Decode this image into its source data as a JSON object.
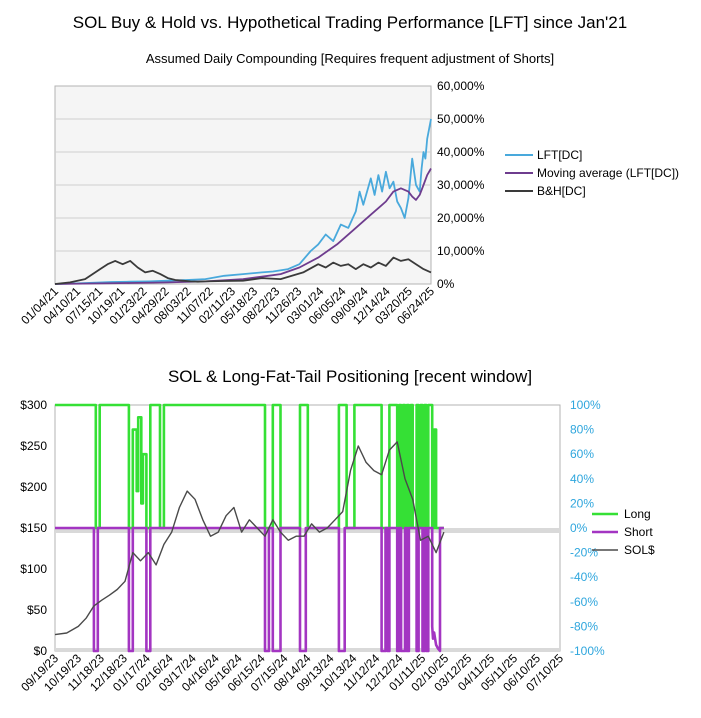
{
  "chart_data": [
    {
      "type": "line",
      "title": "SOL Buy & Hold vs. Hypothetical Trading Performance [LFT] since Jan'21",
      "subtitle": "Assumed Daily Compounding [Requires frequent adjustment of Shorts]",
      "x_tick_labels": [
        "01/04/21",
        "04/10/21",
        "07/15/21",
        "10/19/21",
        "01/23/22",
        "04/29/22",
        "08/03/22",
        "11/07/22",
        "02/11/23",
        "05/18/23",
        "08/22/23",
        "11/26/23",
        "03/01/24",
        "06/05/24",
        "09/09/24",
        "12/14/24",
        "03/20/25",
        "06/24/25"
      ],
      "y_tick_labels": [
        "0%",
        "10,000%",
        "20,000%",
        "30,000%",
        "40,000%",
        "50,000%",
        "60,000%"
      ],
      "ylim": [
        0,
        60000
      ],
      "grid": true,
      "legend_position": "right",
      "series": [
        {
          "name": "LFT[DC]",
          "color": "#49a9dc",
          "t": [
            0,
            0.05,
            0.1,
            0.15,
            0.2,
            0.25,
            0.3,
            0.35,
            0.4,
            0.45,
            0.5,
            0.55,
            0.58,
            0.62,
            0.65,
            0.68,
            0.7,
            0.72,
            0.74,
            0.76,
            0.78,
            0.8,
            0.81,
            0.82,
            0.84,
            0.85,
            0.86,
            0.87,
            0.88,
            0.89,
            0.9,
            0.91,
            0.92,
            0.93,
            0.94,
            0.95,
            0.96,
            0.97,
            0.975,
            0.98,
            0.985,
            0.99,
            0.995,
            1.0
          ],
          "values": [
            0,
            150,
            350,
            600,
            700,
            800,
            1000,
            1200,
            1500,
            2500,
            3000,
            3500,
            3800,
            4500,
            6000,
            10000,
            12000,
            15000,
            13000,
            18000,
            17000,
            22000,
            28000,
            24000,
            32000,
            27000,
            33000,
            28000,
            34000,
            29000,
            31000,
            25000,
            23000,
            20000,
            26000,
            38000,
            30000,
            28000,
            35000,
            40000,
            38000,
            44000,
            47000,
            50000
          ]
        },
        {
          "name": "Moving average (LFT[DC])",
          "color": "#6e3c8e",
          "t": [
            0,
            0.1,
            0.2,
            0.3,
            0.4,
            0.5,
            0.55,
            0.6,
            0.65,
            0.7,
            0.75,
            0.8,
            0.84,
            0.88,
            0.9,
            0.92,
            0.94,
            0.95,
            0.96,
            0.97,
            0.98,
            0.99,
            1.0
          ],
          "values": [
            0,
            150,
            300,
            500,
            800,
            1500,
            2200,
            3000,
            5000,
            8000,
            12000,
            17000,
            21000,
            25000,
            28000,
            29000,
            28000,
            26500,
            25500,
            27000,
            30000,
            33000,
            35000
          ]
        },
        {
          "name": "B&H[DC]",
          "color": "#3a3a3a",
          "t": [
            0,
            0.04,
            0.08,
            0.1,
            0.12,
            0.14,
            0.16,
            0.17,
            0.18,
            0.2,
            0.22,
            0.24,
            0.26,
            0.28,
            0.3,
            0.32,
            0.34,
            0.36,
            0.38,
            0.4,
            0.45,
            0.5,
            0.55,
            0.6,
            0.63,
            0.66,
            0.7,
            0.72,
            0.74,
            0.76,
            0.78,
            0.8,
            0.82,
            0.84,
            0.86,
            0.88,
            0.9,
            0.92,
            0.94,
            0.96,
            0.98,
            1.0
          ],
          "values": [
            0,
            500,
            1500,
            3000,
            4500,
            6000,
            7000,
            6500,
            6000,
            7000,
            5000,
            3500,
            4000,
            3000,
            1800,
            1200,
            1000,
            800,
            700,
            800,
            900,
            1000,
            1800,
            1500,
            2500,
            3500,
            6000,
            5000,
            6500,
            5500,
            6000,
            4500,
            6000,
            5000,
            6500,
            5500,
            8000,
            7000,
            7500,
            6000,
            4500,
            3500
          ]
        }
      ]
    },
    {
      "type": "line",
      "title": "SOL & Long-Fat-Tail Positioning [recent window]",
      "x_tick_labels": [
        "09/19/23",
        "10/19/23",
        "11/18/23",
        "12/18/23",
        "01/17/24",
        "02/16/24",
        "03/17/24",
        "04/16/24",
        "05/16/24",
        "06/15/24",
        "07/15/24",
        "08/14/24",
        "09/13/24",
        "10/13/24",
        "11/12/24",
        "12/12/24",
        "01/11/25",
        "02/10/25",
        "03/12/25",
        "04/11/25",
        "05/11/25",
        "06/10/25",
        "07/10/25"
      ],
      "y_left_tick_labels": [
        "$0",
        "$50",
        "$100",
        "$150",
        "$200",
        "$250",
        "$300"
      ],
      "y_left_lim": [
        0,
        300
      ],
      "y_right_tick_labels": [
        "-100%",
        "-80%",
        "-60%",
        "-40%",
        "-20%",
        "0%",
        "20%",
        "40%",
        "60%",
        "80%",
        "100%"
      ],
      "y_right_lim": [
        -100,
        100
      ],
      "legend_position": "right",
      "series": [
        {
          "name": "Long",
          "color": "#35e035",
          "axis": "right",
          "t": [
            0,
            0.105,
            0.105,
            0.115,
            0.115,
            0.19,
            0.19,
            0.2,
            0.2,
            0.21,
            0.21,
            0.214,
            0.214,
            0.222,
            0.222,
            0.226,
            0.226,
            0.235,
            0.235,
            0.245,
            0.245,
            0.27,
            0.27,
            0.28,
            0.28,
            0.54,
            0.54,
            0.56,
            0.56,
            0.58,
            0.58,
            0.63,
            0.63,
            0.65,
            0.65,
            0.73,
            0.73,
            0.75,
            0.75,
            0.77,
            0.77,
            0.84,
            0.84,
            0.86,
            0.86,
            0.88,
            0.88,
            0.885,
            0.885,
            0.89,
            0.89,
            0.895,
            0.895,
            0.9,
            0.9,
            0.905,
            0.905,
            0.91,
            0.91,
            0.915,
            0.915,
            0.92,
            0.92,
            0.93,
            0.93,
            0.935,
            0.935,
            0.94,
            0.94,
            0.945,
            0.945,
            0.95,
            0.95,
            0.955,
            0.955,
            0.96,
            0.96,
            0.97,
            0.97,
            0.975,
            0.975,
            0.98,
            0.98,
            1.0
          ],
          "values": [
            100,
            100,
            0,
            0,
            100,
            100,
            0,
            0,
            80,
            80,
            30,
            30,
            90,
            90,
            20,
            20,
            60,
            60,
            0,
            0,
            100,
            100,
            0,
            0,
            100,
            100,
            0,
            0,
            100,
            100,
            0,
            0,
            100,
            100,
            0,
            0,
            100,
            100,
            0,
            0,
            100,
            100,
            0,
            0,
            100,
            100,
            0,
            0,
            100,
            100,
            0,
            0,
            100,
            100,
            0,
            0,
            100,
            100,
            0,
            0,
            100,
            100,
            0,
            0,
            100,
            100,
            0,
            0,
            100,
            100,
            0,
            0,
            100,
            100,
            0,
            0,
            100,
            100,
            0,
            0,
            80,
            80,
            0,
            0
          ]
        },
        {
          "name": "Short",
          "color": "#a335c2",
          "axis": "right",
          "t": [
            0,
            0.1,
            0.1,
            0.11,
            0.11,
            0.19,
            0.19,
            0.2,
            0.2,
            0.235,
            0.235,
            0.245,
            0.245,
            0.54,
            0.54,
            0.55,
            0.55,
            0.56,
            0.56,
            0.56,
            0.58,
            0.58,
            0.63,
            0.63,
            0.645,
            0.645,
            0.73,
            0.73,
            0.745,
            0.745,
            0.84,
            0.84,
            0.85,
            0.85,
            0.855,
            0.855,
            0.86,
            0.86,
            0.88,
            0.88,
            0.885,
            0.885,
            0.89,
            0.89,
            0.9,
            0.9,
            0.905,
            0.905,
            0.91,
            0.91,
            0.93,
            0.93,
            0.935,
            0.935,
            0.945,
            0.945,
            0.95,
            0.95,
            0.955,
            0.955,
            0.96,
            0.96,
            0.97,
            0.97,
            0.972,
            0.975,
            0.98,
            0.985,
            0.99,
            0.99,
            1.0
          ],
          "values": [
            0,
            0,
            -100,
            -100,
            0,
            0,
            -100,
            -100,
            0,
            0,
            -100,
            -100,
            0,
            0,
            -100,
            -100,
            0,
            0,
            -100,
            -100,
            -100,
            0,
            0,
            -100,
            -100,
            0,
            0,
            -100,
            -100,
            0,
            0,
            -100,
            -100,
            0,
            0,
            -100,
            -100,
            0,
            0,
            -100,
            -100,
            0,
            0,
            -100,
            -100,
            0,
            0,
            -100,
            -100,
            0,
            0,
            -100,
            -100,
            0,
            0,
            -100,
            -100,
            0,
            0,
            -100,
            -100,
            0,
            0,
            -80,
            -90,
            -85,
            -95,
            -98,
            -100,
            0,
            0
          ]
        },
        {
          "name": "SOL$",
          "color": "#4a4a4a",
          "axis": "left",
          "t": [
            0,
            0.03,
            0.06,
            0.08,
            0.1,
            0.12,
            0.14,
            0.16,
            0.18,
            0.2,
            0.22,
            0.24,
            0.26,
            0.28,
            0.3,
            0.32,
            0.34,
            0.36,
            0.38,
            0.4,
            0.42,
            0.44,
            0.46,
            0.48,
            0.5,
            0.52,
            0.54,
            0.56,
            0.58,
            0.6,
            0.62,
            0.64,
            0.66,
            0.68,
            0.7,
            0.72,
            0.74,
            0.76,
            0.78,
            0.8,
            0.82,
            0.84,
            0.86,
            0.88,
            0.9,
            0.92,
            0.94,
            0.96,
            0.98,
            1.0
          ],
          "values": [
            20,
            22,
            30,
            40,
            55,
            62,
            68,
            75,
            85,
            120,
            110,
            120,
            105,
            130,
            145,
            175,
            195,
            185,
            160,
            140,
            145,
            165,
            175,
            145,
            160,
            150,
            140,
            160,
            145,
            135,
            140,
            140,
            155,
            145,
            150,
            160,
            170,
            220,
            250,
            230,
            220,
            215,
            245,
            255,
            210,
            185,
            135,
            140,
            120,
            145
          ]
        }
      ]
    }
  ]
}
